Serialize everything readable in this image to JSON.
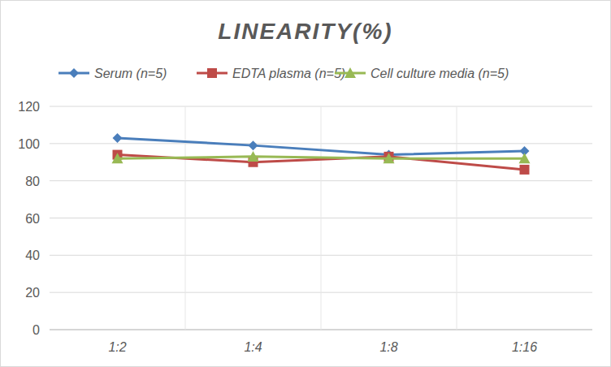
{
  "chart_data": {
    "type": "line",
    "title": "LINEARITY(%)",
    "categories": [
      "1:2",
      "1:4",
      "1:8",
      "1:16"
    ],
    "series": [
      {
        "name": "Serum (n=5)",
        "color": "#4a7ebb",
        "marker": "diamond",
        "values": [
          103,
          99,
          94,
          96
        ]
      },
      {
        "name": "EDTA plasma (n=5)",
        "color": "#be4b48",
        "marker": "square",
        "values": [
          94,
          90,
          93,
          86
        ]
      },
      {
        "name": "Cell culture media (n=5)",
        "color": "#98b954",
        "marker": "triangle",
        "values": [
          92,
          93,
          92,
          92
        ]
      }
    ],
    "ylim": [
      0,
      120
    ],
    "yticks": [
      0,
      20,
      40,
      60,
      80,
      100,
      120
    ],
    "grid": true,
    "legend": "top"
  }
}
